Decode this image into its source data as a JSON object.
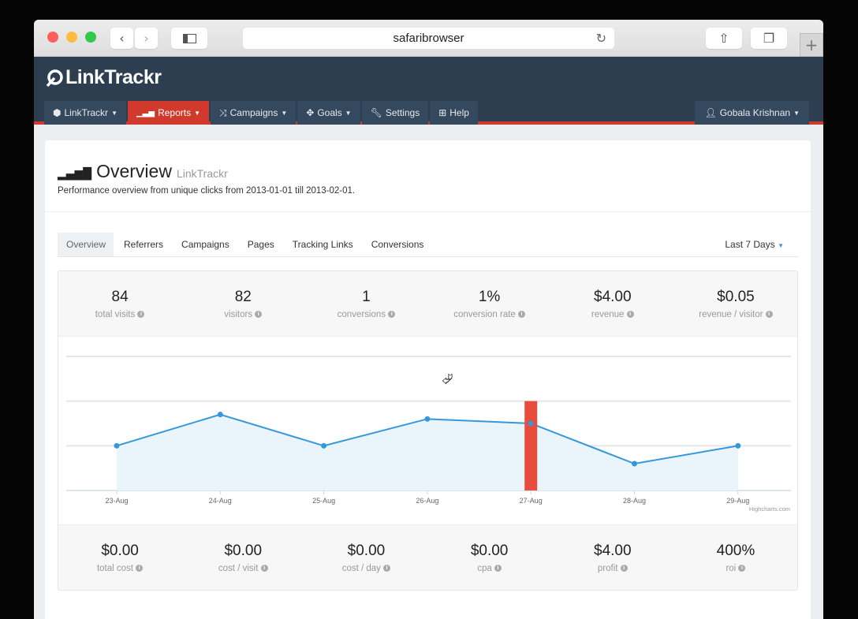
{
  "browser": {
    "url": "safaribrowser",
    "icons": [
      "back",
      "forward",
      "sidebar",
      "reload",
      "share",
      "tabs",
      "new-tab"
    ],
    "traffic_lights": [
      "#fc605c",
      "#fdbc40",
      "#34c84a"
    ]
  },
  "app": {
    "logo": "LinkTrackr",
    "brand_color": "#2c3e50",
    "accent": "#d0392b"
  },
  "nav": {
    "items": [
      {
        "label": "LinkTrackr",
        "icon": "cube-icon",
        "dropdown": true,
        "active": false
      },
      {
        "label": "Reports",
        "icon": "signal-icon",
        "dropdown": true,
        "active": true
      },
      {
        "label": "Campaigns",
        "icon": "shuffle-icon",
        "dropdown": true,
        "active": false
      },
      {
        "label": "Goals",
        "icon": "crosshair-icon",
        "dropdown": true,
        "active": false
      },
      {
        "label": "Settings",
        "icon": "wrench-icon",
        "dropdown": false,
        "active": false
      },
      {
        "label": "Help",
        "icon": "medkit-icon",
        "dropdown": false,
        "active": false
      }
    ],
    "user": "Gobala Krishnan"
  },
  "page": {
    "title": "Overview",
    "subtitle": "LinkTrackr",
    "description": "Performance overview from unique clicks from 2013-01-01 till 2013-02-01."
  },
  "tabs": [
    "Overview",
    "Referrers",
    "Campaigns",
    "Pages",
    "Tracking Links",
    "Conversions"
  ],
  "active_tab": "Overview",
  "range": "Last 7 Days",
  "top_stats": [
    {
      "value": "84",
      "label": "total visits"
    },
    {
      "value": "82",
      "label": "visitors"
    },
    {
      "value": "1",
      "label": "conversions"
    },
    {
      "value": "1%",
      "label": "conversion rate"
    },
    {
      "value": "$4.00",
      "label": "revenue"
    },
    {
      "value": "$0.05",
      "label": "revenue / visitor"
    }
  ],
  "bottom_stats": [
    {
      "value": "$0.00",
      "label": "total cost"
    },
    {
      "value": "$0.00",
      "label": "cost / visit"
    },
    {
      "value": "$0.00",
      "label": "cost / day"
    },
    {
      "value": "$0.00",
      "label": "cpa"
    },
    {
      "value": "$4.00",
      "label": "profit"
    },
    {
      "value": "400%",
      "label": "roi"
    }
  ],
  "chart_data": {
    "type": "area",
    "categories": [
      "23-Aug",
      "24-Aug",
      "25-Aug",
      "26-Aug",
      "27-Aug",
      "28-Aug",
      "29-Aug"
    ],
    "series": [
      {
        "type": "area",
        "values": [
          1,
          1.7,
          1,
          1.6,
          1.5,
          0.6,
          1
        ],
        "color": "#3498db"
      },
      {
        "type": "bar",
        "values": [
          0,
          0,
          0,
          0,
          2,
          0,
          0
        ],
        "color": "#e74c3c"
      }
    ],
    "ylim": [
      0,
      3
    ],
    "grid": true,
    "credits": "Highcharts.com"
  }
}
